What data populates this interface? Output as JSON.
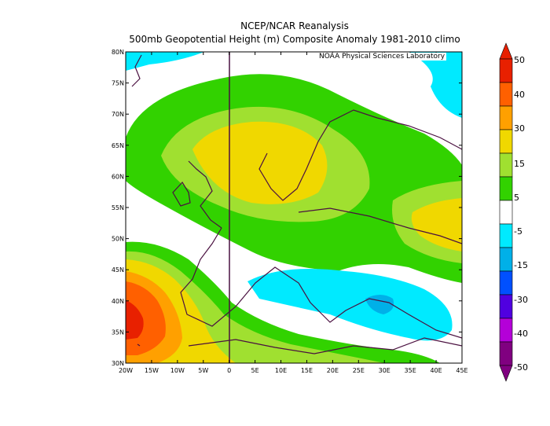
{
  "title": "NCEP/NCAR Reanalysis",
  "subtitle": "500mb Geopotential Height (m) Composite Anomaly 1981-2010 climo",
  "credit": "NOAA Physical Sciences Laboratory",
  "map": {
    "lon_range": [
      -20,
      45
    ],
    "lat_range": [
      30,
      80
    ],
    "lon_ticks": [
      "20W",
      "15W",
      "10W",
      "5W",
      "0",
      "5E",
      "10E",
      "15E",
      "20E",
      "25E",
      "30E",
      "35E",
      "40E",
      "45E"
    ],
    "lat_ticks": [
      "30N",
      "35N",
      "40N",
      "45N",
      "50N",
      "55N",
      "60N",
      "65N",
      "70N",
      "75N",
      "80N"
    ],
    "grid_line": "0",
    "layers": [
      {
        "name": "anomaly 30 to 40 m",
        "color": "#ffa000"
      },
      {
        "name": "anomaly 40 to 50 m",
        "color": "#ff6000"
      },
      {
        "name": "anomaly above 50 m",
        "color": "#e82000"
      }
    ]
  },
  "colorbar": {
    "labels": [
      "50",
      "40",
      "30",
      "15",
      "5",
      "-5",
      "-15",
      "-30",
      "-40",
      "-50"
    ],
    "colors": [
      "#e82000",
      "#ff6000",
      "#ffa000",
      "#f0d800",
      "#a0e030",
      "#32d200",
      "#ffffff",
      "#00eaff",
      "#00b0e8",
      "#0050ff",
      "#5000e0",
      "#b400d8",
      "#800080"
    ]
  }
}
